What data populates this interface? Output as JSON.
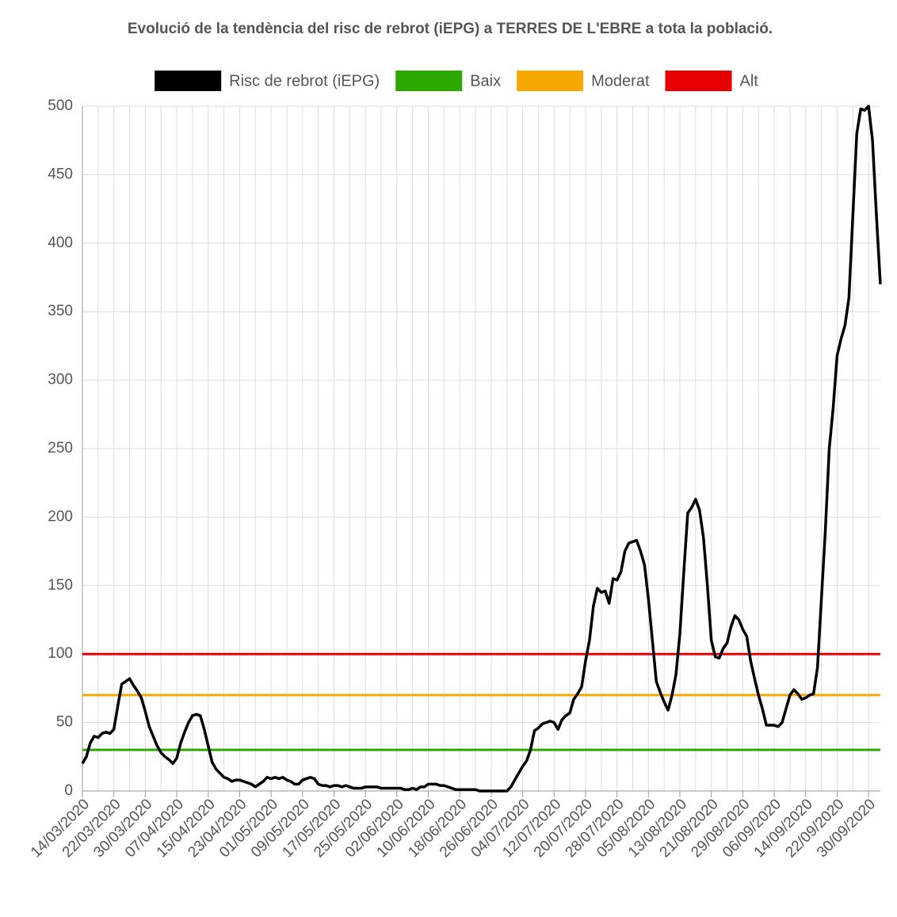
{
  "chart_data": {
    "type": "line",
    "title": "Evolució de la tendència del risc de rebrot (iEPG) a TERRES DE L'EBRE a tota la població.",
    "categories": [
      "14/03/2020",
      null,
      null,
      null,
      null,
      null,
      null,
      null,
      "22/03/2020",
      null,
      null,
      null,
      null,
      null,
      null,
      null,
      "30/03/2020",
      null,
      null,
      null,
      null,
      null,
      null,
      null,
      "07/04/2020",
      null,
      null,
      null,
      null,
      null,
      null,
      null,
      "15/04/2020",
      null,
      null,
      null,
      null,
      null,
      null,
      null,
      "23/04/2020",
      null,
      null,
      null,
      null,
      null,
      null,
      null,
      "01/05/2020",
      null,
      null,
      null,
      null,
      null,
      null,
      null,
      "09/05/2020",
      null,
      null,
      null,
      null,
      null,
      null,
      null,
      "17/05/2020",
      null,
      null,
      null,
      null,
      null,
      null,
      null,
      "25/05/2020",
      null,
      null,
      null,
      null,
      null,
      null,
      null,
      "02/06/2020",
      null,
      null,
      null,
      null,
      null,
      null,
      null,
      "10/06/2020",
      null,
      null,
      null,
      null,
      null,
      null,
      null,
      "18/06/2020",
      null,
      null,
      null,
      null,
      null,
      null,
      null,
      "26/06/2020",
      null,
      null,
      null,
      null,
      null,
      null,
      null,
      "04/07/2020",
      null,
      null,
      null,
      null,
      null,
      null,
      null,
      "12/07/2020",
      null,
      null,
      null,
      null,
      null,
      null,
      null,
      "20/07/2020",
      null,
      null,
      null,
      null,
      null,
      null,
      null,
      "28/07/2020",
      null,
      null,
      null,
      null,
      null,
      null,
      null,
      "05/08/2020",
      null,
      null,
      null,
      null,
      null,
      null,
      null,
      "13/08/2020",
      null,
      null,
      null,
      null,
      null,
      null,
      null,
      "21/08/2020",
      null,
      null,
      null,
      null,
      null,
      null,
      null,
      "29/08/2020",
      null,
      null,
      null,
      null,
      null,
      null,
      null,
      "06/09/2020",
      null,
      null,
      null,
      null,
      null,
      null,
      null,
      "14/09/2020",
      null,
      null,
      null,
      null,
      null,
      null,
      null,
      "22/09/2020",
      null,
      null,
      null,
      null,
      null,
      null,
      null,
      "30/09/2020",
      null,
      null,
      null
    ],
    "series": [
      {
        "name": "Risc de rebrot (iEPG)",
        "color": "#000000",
        "values": [
          20,
          25,
          35,
          40,
          39,
          42,
          43,
          42,
          45,
          62,
          78,
          80,
          82,
          77,
          73,
          68,
          58,
          47,
          40,
          33,
          28,
          25,
          23,
          20,
          24,
          35,
          43,
          50,
          55,
          56,
          55,
          45,
          33,
          21,
          16,
          13,
          10,
          9,
          7,
          8,
          8,
          7,
          6,
          5,
          3,
          5,
          7,
          10,
          9,
          10,
          9,
          10,
          8,
          7,
          5,
          5,
          8,
          9,
          10,
          9,
          5,
          4,
          4,
          3,
          4,
          4,
          3,
          4,
          3,
          2,
          2,
          2,
          3,
          3,
          3,
          3,
          2,
          2,
          2,
          2,
          2,
          2,
          1,
          1,
          2,
          1,
          3,
          3,
          5,
          5,
          5,
          4,
          4,
          3,
          2,
          1,
          1,
          1,
          1,
          1,
          1,
          0,
          0,
          0,
          0,
          0,
          0,
          0,
          0,
          3,
          8,
          13,
          18,
          22,
          30,
          44,
          46,
          49,
          50,
          51,
          50,
          45,
          52,
          55,
          57,
          67,
          71,
          76,
          95,
          110,
          135,
          148,
          145,
          146,
          137,
          155,
          154,
          160,
          175,
          181,
          182,
          183,
          175,
          165,
          140,
          110,
          80,
          72,
          65,
          59,
          70,
          85,
          115,
          160,
          203,
          207,
          213,
          205,
          185,
          150,
          110,
          98,
          97,
          104,
          108,
          120,
          128,
          125,
          118,
          113,
          95,
          82,
          70,
          60,
          48,
          48,
          48,
          47,
          50,
          60,
          70,
          74,
          71,
          67,
          68,
          70,
          71,
          90,
          140,
          190,
          250,
          280,
          318,
          330,
          340,
          360,
          420,
          480,
          498,
          497,
          500,
          475,
          420,
          370
        ]
      }
    ],
    "reference_lines": [
      {
        "name": "Baix",
        "color": "#2ca800",
        "value": 30
      },
      {
        "name": "Moderat",
        "color": "#f7a800",
        "value": 70
      },
      {
        "name": "Alt",
        "color": "#e80000",
        "value": 100
      }
    ],
    "ylim": [
      0,
      500
    ],
    "yticks": [
      0,
      50,
      100,
      150,
      200,
      250,
      300,
      350,
      400,
      450,
      500
    ],
    "grid": true
  }
}
